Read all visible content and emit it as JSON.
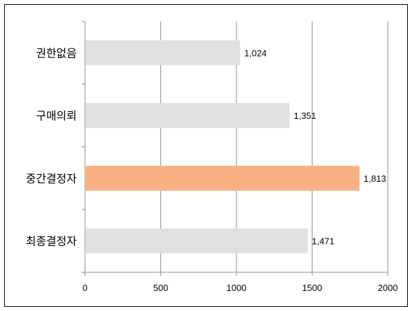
{
  "chart_data": {
    "type": "bar",
    "orientation": "horizontal",
    "categories": [
      "권한없음",
      "구매의뢰",
      "중간결정자",
      "최종결정자"
    ],
    "values": [
      1024,
      1351,
      1813,
      1471
    ],
    "value_labels": [
      "1,024",
      "1,351",
      "1,813",
      "1,471"
    ],
    "xlim": [
      0,
      2000
    ],
    "xticks": [
      0,
      500,
      1000,
      1500,
      2000
    ],
    "xtick_labels": [
      "0",
      "500",
      "1000",
      "1500",
      "2000"
    ],
    "grid": "vertical",
    "highlight_index": 2,
    "colors": {
      "default": "#e0e0e0",
      "highlight": "#f9b184",
      "grid": "#8c8c8c",
      "axis": "#8c8c8c"
    }
  }
}
